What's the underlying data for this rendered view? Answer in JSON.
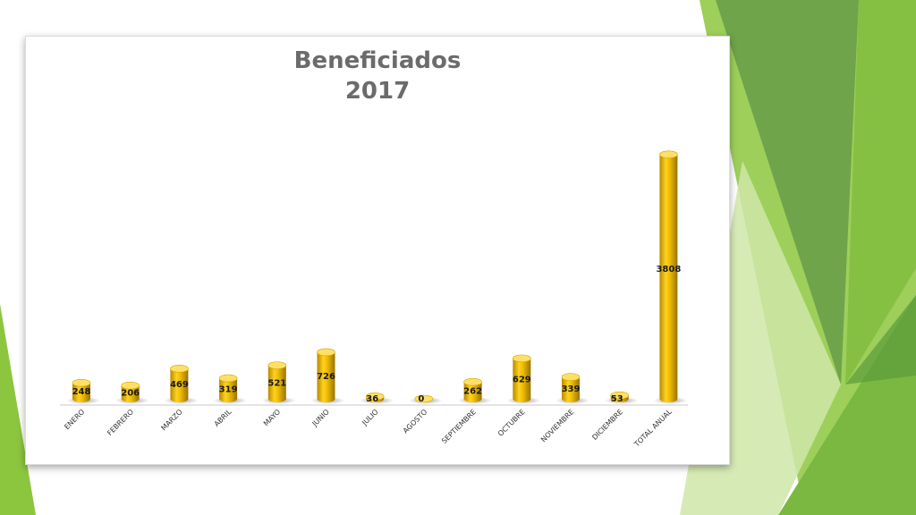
{
  "chart_data": {
    "type": "bar",
    "title": "Beneficiados\n2017",
    "xlabel": "",
    "ylabel": "",
    "categories": [
      "ENERO",
      "FEBRERO",
      "MARZO",
      "ABRIL",
      "MAYO",
      "JUNIO",
      "JULIO",
      "AGOSTO",
      "SEPTIEMBRE",
      "OCTUBRE",
      "NOVIEMBRE",
      "DICIEMBRE",
      "TOTAL ANUAL"
    ],
    "values": [
      248,
      206,
      469,
      319,
      521,
      726,
      36,
      0,
      262,
      629,
      339,
      53,
      3808
    ],
    "ylim": [
      0,
      4000
    ],
    "grid": false,
    "legend": "none",
    "bar_style": "3d-cylinder",
    "colors": {
      "bar": "#e8b400",
      "bar_light": "#ffe066",
      "bar_dark": "#a07a00",
      "label": "#1a1a1a",
      "title": "#6b6b6b"
    }
  },
  "theme_colors": {
    "green_dark": "#5d9a3a",
    "green_mid": "#7bb842",
    "green_light": "#9dcf5a",
    "green_pale": "#cfe6a8"
  }
}
